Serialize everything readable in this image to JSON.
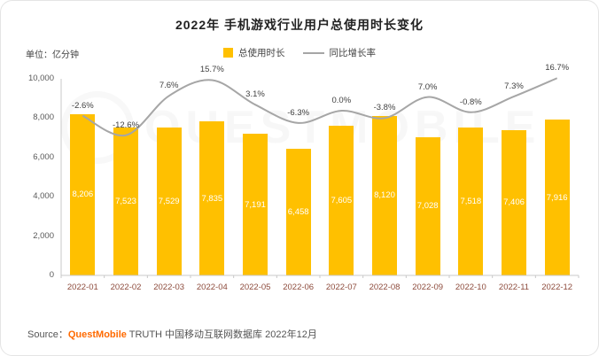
{
  "title": "2022年 手机游戏行业用户总使用时长变化",
  "unit_label": "单位：亿分钟",
  "legend": {
    "bar": "总使用时长",
    "line": "同比增长率"
  },
  "watermark": "QUESTMOBILE",
  "source": {
    "prefix": "Source：",
    "brand": "QuestMobile",
    "rest": " TRUTH 中国移动互联网数据库 2022年12月"
  },
  "colors": {
    "bar": "#FFC000",
    "line": "#A6A6A6",
    "bar_label": "#FFFFFF",
    "growth_label": "#3F3F3F",
    "x_axis_label": "#8D4B3C",
    "y_axis_label": "#595959",
    "axis_line": "#C8C8C8",
    "brand_orange": "#FF6A00"
  },
  "chart_data": {
    "type": "bar+line",
    "title": "2022年 手机游戏行业用户总使用时长变化",
    "unit": "亿分钟",
    "categories": [
      "2022-01",
      "2022-02",
      "2022-03",
      "2022-04",
      "2022-05",
      "2022-06",
      "2022-07",
      "2022-08",
      "2022-09",
      "2022-10",
      "2022-11",
      "2022-12"
    ],
    "series": [
      {
        "name": "总使用时长",
        "type": "bar",
        "values": [
          8206,
          7523,
          7529,
          7835,
          7191,
          6458,
          7605,
          8120,
          7028,
          7518,
          7406,
          7916
        ],
        "labels": [
          "8,206",
          "7,523",
          "7,529",
          "7,835",
          "7,191",
          "6,458",
          "7,605",
          "8,120",
          "7,028",
          "7,518",
          "7,406",
          "7,916"
        ]
      },
      {
        "name": "同比增长率",
        "type": "line",
        "values": [
          -2.6,
          -12.6,
          7.6,
          15.7,
          3.1,
          -6.3,
          0.0,
          -3.8,
          7.0,
          -0.8,
          7.3,
          16.7
        ],
        "labels": [
          "-2.6%",
          "-12.6%",
          "7.6%",
          "15.7%",
          "3.1%",
          "-6.3%",
          "0.0%",
          "-3.8%",
          "7.0%",
          "-0.8%",
          "7.3%",
          "16.7%"
        ]
      }
    ],
    "ylim": [
      0,
      10000
    ],
    "yticks": [
      "0",
      "2,000",
      "4,000",
      "6,000",
      "8,000",
      "10,000"
    ],
    "grid": false,
    "legend_position": "top"
  }
}
